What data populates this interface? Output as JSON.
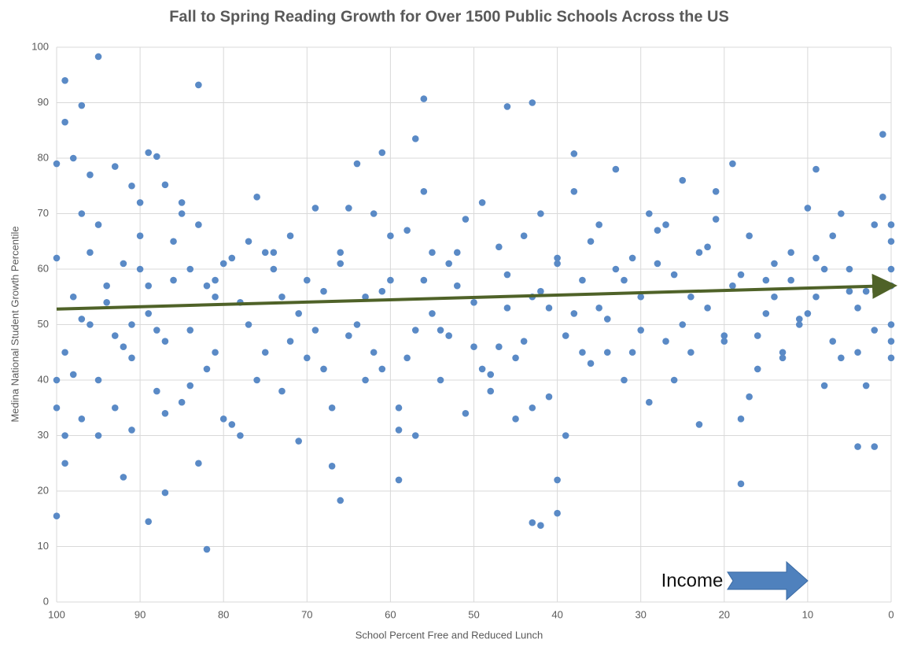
{
  "chart_data": {
    "type": "scatter",
    "title": "Fall to Spring Reading Growth for Over 1500 Public Schools Across the US",
    "xlabel": "School Percent Free and Reduced Lunch",
    "ylabel": "Medina National Student Growth Percentile",
    "annotation": "Income",
    "xlim": [
      100,
      0
    ],
    "ylim": [
      0,
      100
    ],
    "xticks": [
      100,
      90,
      80,
      70,
      60,
      50,
      40,
      30,
      20,
      10,
      0
    ],
    "yticks": [
      0,
      10,
      20,
      30,
      40,
      50,
      60,
      70,
      80,
      90,
      100
    ],
    "grid": true,
    "series": [
      {
        "color": "#5a8ac6",
        "x": [
          95,
          99,
          97,
          83,
          56,
          46,
          43,
          82,
          89,
          100,
          87,
          66,
          43,
          42,
          40,
          18,
          1,
          9,
          19,
          38,
          61,
          57,
          89,
          88,
          4,
          2,
          59,
          40,
          92,
          100,
          99,
          98,
          96,
          93,
          91,
          90,
          87,
          85,
          84,
          81,
          100,
          100,
          100,
          99,
          99,
          98,
          97,
          97,
          96,
          95,
          94,
          93,
          92,
          91,
          90,
          89,
          88,
          87,
          86,
          85,
          84,
          83,
          82,
          81,
          80,
          79,
          78,
          77,
          76,
          75,
          74,
          73,
          72,
          71,
          70,
          69,
          68,
          67,
          66,
          65,
          64,
          63,
          62,
          61,
          60,
          59,
          58,
          57,
          56,
          55,
          54,
          53,
          52,
          51,
          50,
          49,
          48,
          47,
          46,
          45,
          44,
          43,
          42,
          41,
          40,
          39,
          38,
          37,
          36,
          35,
          34,
          33,
          32,
          31,
          30,
          29,
          28,
          27,
          26,
          25,
          24,
          23,
          22,
          21,
          20,
          19,
          18,
          17,
          16,
          15,
          14,
          13,
          12,
          11,
          10,
          9,
          8,
          7,
          6,
          5,
          4,
          3,
          2,
          1,
          0,
          0,
          0,
          0,
          0,
          0,
          98,
          96,
          94,
          92,
          90,
          88,
          86,
          84,
          82,
          80,
          78,
          76,
          74,
          72,
          70,
          68,
          66,
          64,
          62,
          60,
          58,
          56,
          54,
          52,
          50,
          48,
          46,
          44,
          42,
          40,
          38,
          36,
          34,
          32,
          30,
          28,
          26,
          24,
          22,
          20,
          18,
          16,
          14,
          12,
          10,
          8,
          6,
          4,
          2,
          0,
          97,
          93,
          89,
          85,
          81,
          77,
          73,
          69,
          65,
          61,
          57,
          53,
          49,
          45,
          41,
          37,
          33,
          29,
          25,
          21,
          17,
          13,
          9,
          5,
          3,
          7,
          11,
          15,
          23,
          27,
          31,
          35,
          39,
          43,
          47,
          51,
          55,
          59,
          63,
          67,
          71,
          75,
          79,
          83,
          87,
          91,
          95,
          99,
          95,
          91
        ],
        "y": [
          98.3,
          94,
          89.5,
          93.2,
          90.7,
          89.3,
          90,
          9.5,
          14.5,
          15.5,
          19.7,
          18.3,
          14.3,
          13.8,
          16,
          21.3,
          84.3,
          78,
          79,
          80.8,
          81,
          83.5,
          81,
          80.3,
          28,
          28,
          22,
          22,
          22.5,
          79,
          86.5,
          80,
          77,
          78.5,
          75,
          72,
          75.2,
          72,
          60,
          58,
          35,
          40,
          62,
          30,
          45,
          55,
          70,
          33,
          50,
          68,
          57,
          48,
          61,
          44,
          66,
          52,
          38,
          47,
          58,
          36,
          49,
          68,
          42,
          55,
          33,
          62,
          30,
          50,
          73,
          45,
          60,
          38,
          66,
          52,
          44,
          71,
          56,
          35,
          63,
          48,
          79,
          55,
          70,
          42,
          58,
          35,
          67,
          49,
          74,
          52,
          40,
          61,
          57,
          69,
          46,
          72,
          38,
          64,
          53,
          44,
          66,
          55,
          70,
          37,
          61,
          48,
          74,
          58,
          43,
          68,
          51,
          78,
          40,
          62,
          55,
          36,
          67,
          47,
          59,
          76,
          45,
          63,
          53,
          69,
          48,
          57,
          33,
          66,
          42,
          52,
          61,
          45,
          58,
          50,
          71,
          55,
          39,
          47,
          70,
          60,
          45,
          56,
          68,
          73,
          44,
          50,
          60,
          68,
          47,
          65,
          41,
          63,
          54,
          46,
          60,
          49,
          65,
          39,
          57,
          61,
          54,
          40,
          63,
          47,
          58,
          42,
          61,
          50,
          45,
          66,
          44,
          58,
          49,
          63,
          54,
          41,
          59,
          47,
          56,
          62,
          52,
          65,
          45,
          58,
          49,
          61,
          40,
          55,
          64,
          47,
          59,
          48,
          55,
          63,
          52,
          60,
          44,
          53,
          49,
          57,
          51,
          35,
          57,
          70,
          45,
          65,
          55,
          49,
          71,
          56,
          30,
          48,
          42,
          33,
          53,
          45,
          60,
          70,
          50,
          74,
          37,
          44,
          62,
          56,
          39,
          66,
          51,
          58,
          32,
          68,
          45,
          53,
          30,
          35,
          46,
          34,
          63,
          31,
          40,
          24.5,
          29,
          63,
          32,
          25,
          34,
          31,
          40,
          25,
          30,
          50
        ]
      }
    ],
    "trendline": {
      "x": [
        100,
        0
      ],
      "y": [
        52.8,
        57
      ],
      "color": "#4f6228"
    }
  }
}
